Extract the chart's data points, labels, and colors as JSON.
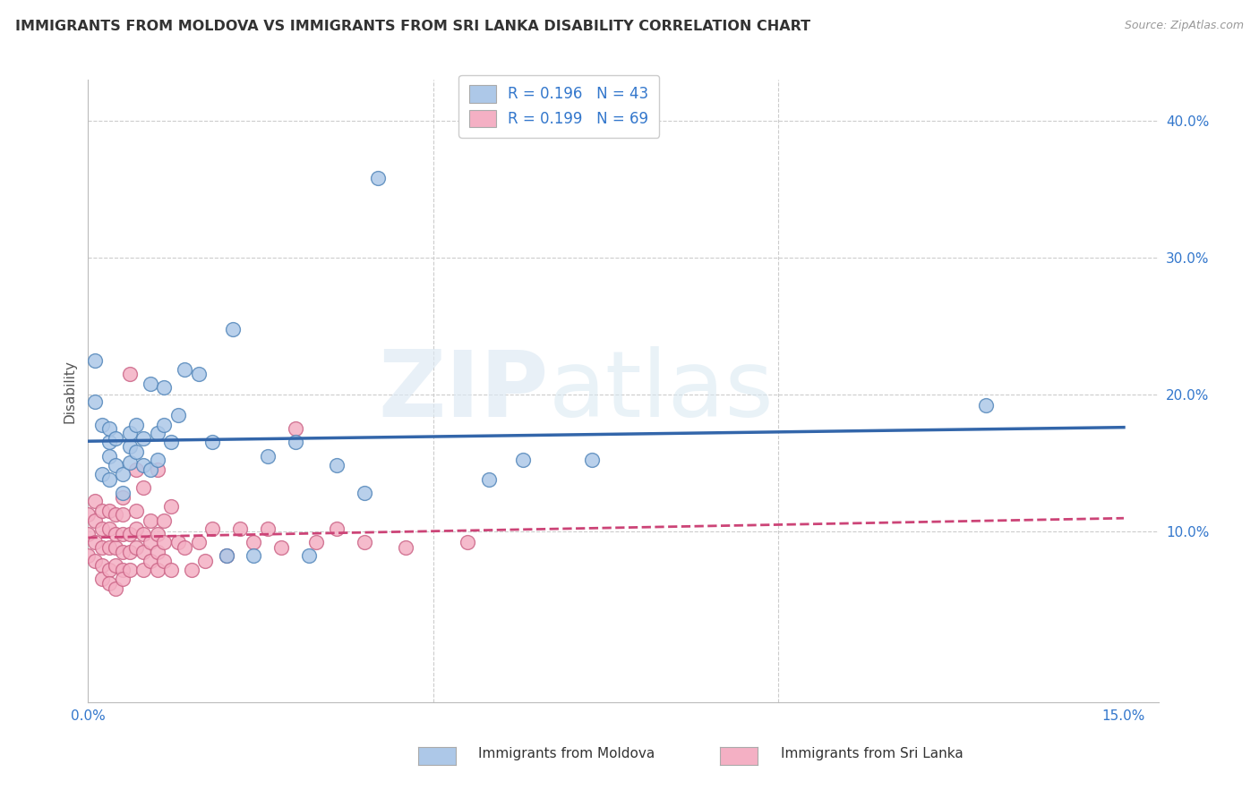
{
  "title": "IMMIGRANTS FROM MOLDOVA VS IMMIGRANTS FROM SRI LANKA DISABILITY CORRELATION CHART",
  "source": "Source: ZipAtlas.com",
  "ylabel_label": "Disability",
  "xlim": [
    0.0,
    0.155
  ],
  "ylim": [
    -0.025,
    0.43
  ],
  "moldova_color": "#adc8e8",
  "moldova_edge": "#5588bb",
  "srilanka_color": "#f4b0c4",
  "srilanka_edge": "#cc6688",
  "moldova_R": "0.196",
  "moldova_N": "43",
  "srilanka_R": "0.199",
  "srilanka_N": "69",
  "moldova_line_color": "#3366aa",
  "srilanka_line_color": "#cc4477",
  "legend_text_color": "#3377cc",
  "legend_label_color": "#333333",
  "moldova_legend": "Immigrants from Moldova",
  "srilanka_legend": "Immigrants from Sri Lanka",
  "moldova_x": [
    0.001,
    0.001,
    0.002,
    0.002,
    0.003,
    0.003,
    0.003,
    0.003,
    0.004,
    0.004,
    0.005,
    0.005,
    0.006,
    0.006,
    0.006,
    0.007,
    0.007,
    0.008,
    0.008,
    0.009,
    0.009,
    0.01,
    0.01,
    0.011,
    0.011,
    0.012,
    0.013,
    0.014,
    0.016,
    0.018,
    0.02,
    0.021,
    0.024,
    0.026,
    0.03,
    0.032,
    0.036,
    0.04,
    0.042,
    0.058,
    0.063,
    0.073,
    0.13
  ],
  "moldova_y": [
    0.225,
    0.195,
    0.142,
    0.178,
    0.138,
    0.155,
    0.165,
    0.175,
    0.148,
    0.168,
    0.128,
    0.142,
    0.15,
    0.162,
    0.172,
    0.158,
    0.178,
    0.148,
    0.168,
    0.145,
    0.208,
    0.152,
    0.172,
    0.178,
    0.205,
    0.165,
    0.185,
    0.218,
    0.215,
    0.165,
    0.082,
    0.248,
    0.082,
    0.155,
    0.165,
    0.082,
    0.148,
    0.128,
    0.358,
    0.138,
    0.152,
    0.152,
    0.192
  ],
  "srilanka_x": [
    0.0,
    0.0,
    0.0,
    0.001,
    0.001,
    0.001,
    0.001,
    0.002,
    0.002,
    0.002,
    0.002,
    0.002,
    0.003,
    0.003,
    0.003,
    0.003,
    0.003,
    0.004,
    0.004,
    0.004,
    0.004,
    0.004,
    0.005,
    0.005,
    0.005,
    0.005,
    0.005,
    0.005,
    0.006,
    0.006,
    0.006,
    0.006,
    0.007,
    0.007,
    0.007,
    0.007,
    0.008,
    0.008,
    0.008,
    0.008,
    0.009,
    0.009,
    0.009,
    0.01,
    0.01,
    0.01,
    0.01,
    0.011,
    0.011,
    0.011,
    0.012,
    0.012,
    0.013,
    0.014,
    0.015,
    0.016,
    0.017,
    0.018,
    0.02,
    0.022,
    0.024,
    0.026,
    0.028,
    0.03,
    0.033,
    0.036,
    0.04,
    0.046,
    0.055
  ],
  "srilanka_y": [
    0.082,
    0.098,
    0.112,
    0.078,
    0.092,
    0.108,
    0.122,
    0.075,
    0.088,
    0.102,
    0.115,
    0.065,
    0.072,
    0.088,
    0.102,
    0.115,
    0.062,
    0.075,
    0.088,
    0.098,
    0.112,
    0.058,
    0.072,
    0.085,
    0.098,
    0.112,
    0.065,
    0.125,
    0.072,
    0.085,
    0.098,
    0.215,
    0.088,
    0.102,
    0.115,
    0.145,
    0.072,
    0.085,
    0.098,
    0.132,
    0.078,
    0.092,
    0.108,
    0.072,
    0.085,
    0.098,
    0.145,
    0.078,
    0.092,
    0.108,
    0.072,
    0.118,
    0.092,
    0.088,
    0.072,
    0.092,
    0.078,
    0.102,
    0.082,
    0.102,
    0.092,
    0.102,
    0.088,
    0.175,
    0.092,
    0.102,
    0.092,
    0.088,
    0.092
  ]
}
